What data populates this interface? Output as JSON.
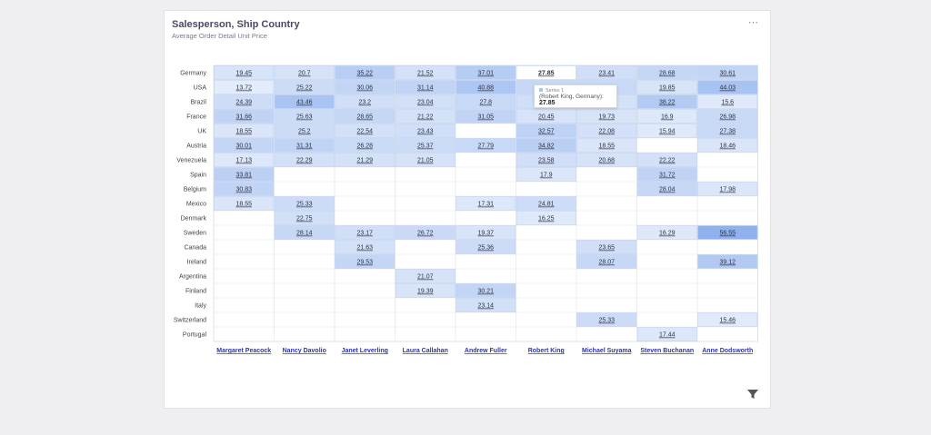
{
  "card": {
    "title": "Salesperson, Ship Country",
    "subtitle": "Average Order Detail Unit Price",
    "menu_label": "⋯"
  },
  "icons": {
    "menu": "more-horizontal-icon",
    "filter": "filter-icon"
  },
  "colors": {
    "low": "#e3ecfa",
    "high": "#8fb1ee",
    "grid": "#dfe2ea",
    "label_link": "#2f34a8"
  },
  "tooltip": {
    "series": "Series 1",
    "detail": "(Robert King, Germany):",
    "value": "27.85"
  },
  "chart_data": {
    "type": "heatmap",
    "title": "Salesperson, Ship Country",
    "subtitle": "Average Order Detail Unit Price",
    "columns": [
      "Margaret Peacock",
      "Nancy Davolio",
      "Janet Leverling",
      "Laura Callahan",
      "Andrew Fuller",
      "Robert King",
      "Michael Suyama",
      "Steven Buchanan",
      "Anne Dodsworth"
    ],
    "rows": [
      "Germany",
      "USA",
      "Brazil",
      "France",
      "UK",
      "Austria",
      "Venezuela",
      "Spain",
      "Belgium",
      "Mexico",
      "Denmark",
      "Sweden",
      "Canada",
      "Ireland",
      "Argentina",
      "Finland",
      "Italy",
      "Switzerland",
      "Portugal"
    ],
    "values": [
      [
        19.45,
        20.7,
        35.22,
        21.52,
        37.01,
        27.85,
        23.41,
        28.68,
        30.61
      ],
      [
        13.72,
        25.22,
        30.06,
        31.14,
        40.88,
        28.09,
        27.31,
        19.85,
        44.03
      ],
      [
        24.39,
        43.46,
        23.2,
        23.04,
        27.8,
        23.31,
        21.13,
        38.22,
        15.6
      ],
      [
        31.66,
        25.63,
        28.65,
        21.22,
        31.05,
        20.45,
        19.73,
        16.9,
        26.98
      ],
      [
        18.55,
        25.2,
        22.54,
        23.43,
        null,
        32.57,
        22.08,
        15.94,
        27.38
      ],
      [
        30.01,
        31.31,
        26.28,
        25.37,
        27.79,
        34.82,
        18.55,
        null,
        18.46
      ],
      [
        17.13,
        22.29,
        21.29,
        21.05,
        null,
        23.58,
        20.68,
        22.22,
        null
      ],
      [
        33.81,
        null,
        null,
        null,
        null,
        17.9,
        null,
        31.72,
        null
      ],
      [
        30.83,
        null,
        null,
        null,
        null,
        null,
        null,
        28.04,
        17.98
      ],
      [
        18.55,
        25.33,
        null,
        null,
        17.31,
        24.81,
        null,
        null,
        null
      ],
      [
        null,
        22.75,
        null,
        null,
        null,
        16.25,
        null,
        null,
        null
      ],
      [
        null,
        28.14,
        23.17,
        26.72,
        19.37,
        null,
        null,
        16.29,
        56.55
      ],
      [
        null,
        null,
        21.63,
        null,
        25.36,
        null,
        23.65,
        null,
        null
      ],
      [
        null,
        null,
        29.53,
        null,
        null,
        null,
        28.07,
        null,
        39.12
      ],
      [
        null,
        null,
        null,
        21.07,
        null,
        null,
        null,
        null,
        null
      ],
      [
        null,
        null,
        null,
        19.39,
        30.21,
        null,
        null,
        null,
        null
      ],
      [
        null,
        null,
        null,
        null,
        23.14,
        null,
        null,
        null,
        null
      ],
      [
        null,
        null,
        null,
        null,
        null,
        null,
        25.33,
        null,
        15.46
      ],
      [
        null,
        null,
        null,
        null,
        null,
        null,
        null,
        17.44,
        null
      ]
    ],
    "highlighted": {
      "row": "Germany",
      "column": "Robert King"
    }
  }
}
